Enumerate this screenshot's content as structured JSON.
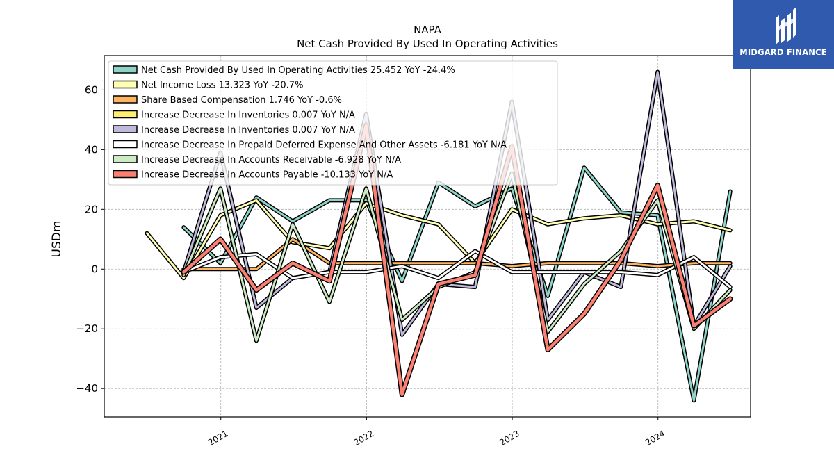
{
  "logo": {
    "text": "MIDGARD FINANCE",
    "icon": "midgard-logo-icon",
    "color": "#2f5aae"
  },
  "chart_data": {
    "type": "line",
    "title": "NAPA",
    "subtitle": "Net Cash Provided By Used In Operating Activities",
    "ylabel": "USDm",
    "xlabel": "",
    "ylim": [
      -49.5,
      71.5
    ],
    "xlim": [
      "2020-03-15",
      "2024-08-20"
    ],
    "yticks": [
      -40,
      -20,
      0,
      20,
      40,
      60
    ],
    "ytick_labels": [
      "−40",
      "−20",
      "0",
      "20",
      "40",
      "60"
    ],
    "xticks": [
      "2021-01-01",
      "2022-01-01",
      "2023-01-01",
      "2024-01-01"
    ],
    "xtick_labels": [
      "2021",
      "2022",
      "2023",
      "2024"
    ],
    "grid": true,
    "legend_position": "top-left",
    "x": [
      "2020-06-30",
      "2020-09-30",
      "2020-12-31",
      "2021-03-31",
      "2021-06-30",
      "2021-09-30",
      "2021-12-31",
      "2022-03-31",
      "2022-06-30",
      "2022-09-30",
      "2022-12-31",
      "2023-03-31",
      "2023-06-30",
      "2023-09-30",
      "2023-12-31",
      "2024-03-31",
      "2024-06-30"
    ],
    "series": [
      {
        "name": "Net Cash Provided By Used In Operating Activities  25.452 YoY -24.4%",
        "color": "#8dd3c7",
        "width": 3,
        "values": [
          null,
          14,
          2,
          24,
          16,
          23,
          23,
          -4,
          29,
          21,
          27,
          -9,
          34,
          19,
          18,
          -44,
          26
        ]
      },
      {
        "name": "Net Income Loss  13.323 YoY -20.7%",
        "color": "#ffffb3",
        "width": 3,
        "values": [
          12,
          -3,
          18,
          23,
          9,
          7,
          22,
          18,
          15,
          2,
          20,
          15,
          17,
          18,
          15,
          16,
          13
        ]
      },
      {
        "name": "Share Based Compensation  1.746 YoY -0.6%",
        "color": "#fdb462",
        "width": 3,
        "values": [
          null,
          0,
          0,
          0,
          10,
          2,
          2,
          2,
          2,
          2,
          1,
          2,
          2,
          2,
          1,
          2,
          2
        ]
      },
      {
        "name": "Increase Decrease In Inventories  0.007 YoY N/A",
        "color": "#ffed6f",
        "width": 3,
        "values": [
          null,
          null,
          null,
          null,
          null,
          null,
          null,
          null,
          null,
          null,
          null,
          null,
          null,
          null,
          null,
          null,
          null
        ]
      },
      {
        "name": "Increase Decrease In Inventories  0.007 YoY N/A",
        "color": "#bebada",
        "width": 3,
        "values": [
          null,
          -1,
          39,
          -13,
          -3,
          -1,
          52,
          -22,
          -5,
          -6,
          56,
          -17,
          -1,
          -6,
          66,
          -19,
          1
        ]
      },
      {
        "name": "Increase Decrease In Prepaid Deferred Expense And Other Assets  -6.181 YoY N/A",
        "color": "#ffffff",
        "width": 3,
        "values": [
          null,
          -1,
          4,
          5,
          -3,
          -1,
          -1,
          1,
          -3,
          6,
          -1,
          -1,
          -1,
          -1,
          -2,
          4,
          -6
        ]
      },
      {
        "name": "Increase Decrease In Accounts Receivable  -6.928 YoY N/A",
        "color": "#ccebc5",
        "width": 3,
        "values": [
          null,
          -2,
          27,
          -24,
          15,
          -11,
          27,
          -17,
          -6,
          -1,
          32,
          -21,
          -5,
          6,
          23,
          -20,
          -7
        ]
      },
      {
        "name": "Increase Decrease In Accounts Payable  -10.133 YoY N/A",
        "color": "#fb8072",
        "width": 4.5,
        "values": [
          null,
          -1,
          10,
          -7,
          2,
          -4,
          48,
          -42,
          -5,
          -2,
          41,
          -27,
          -15,
          3,
          28,
          -19,
          -10
        ]
      }
    ]
  }
}
